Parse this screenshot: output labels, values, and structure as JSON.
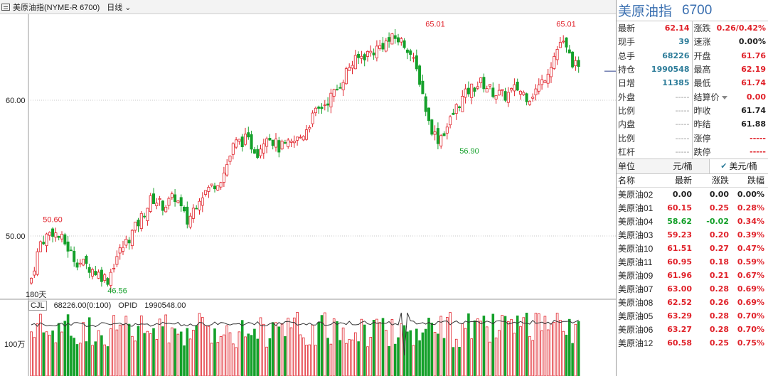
{
  "topbar": {
    "title": "美原油指(NYME-R 6700)",
    "period": "日线"
  },
  "chart": {
    "y_labels": [
      {
        "text": "60.00",
        "value": 60
      },
      {
        "text": "50.00",
        "value": 50
      }
    ],
    "annotations": [
      {
        "text": "50.60",
        "value": 50.6,
        "kind": "high"
      },
      {
        "text": "46.56",
        "value": 46.56,
        "kind": "low"
      },
      {
        "text": "65.01",
        "value": 65.01,
        "kind": "high"
      },
      {
        "text": "56.90",
        "value": 56.9,
        "kind": "low"
      },
      {
        "text": "65.01",
        "value": 65.01,
        "kind": "high"
      }
    ],
    "corner_label": "180天",
    "volume_axis_label": "100万",
    "colors": {
      "up": "#e0222a",
      "down": "#14a02a",
      "grid": "#c8c8c8"
    }
  },
  "chart_data": {
    "type": "candlestick",
    "y_ticks": [
      50,
      60
    ],
    "annotated_extremes": [
      50.6,
      46.56,
      65.01,
      56.9,
      65.01
    ],
    "volume": {
      "cjl": "68226.00(0:100)",
      "opid": "1990548.00"
    }
  },
  "vol_header": {
    "cjl": "CJL",
    "cjl_value": "68226.00(0:100)",
    "opid": "OPID",
    "opid_value": "1990548.00"
  },
  "panel": {
    "name": "美原油指",
    "code": "6700",
    "quotes": [
      {
        "l1": "最新",
        "v1": "62.14",
        "c1": "red",
        "l2": "涨跌",
        "v2": "0.26/0.42%",
        "c2": "red"
      },
      {
        "l1": "现手",
        "v1": "39",
        "c1": "teal",
        "l2": "速涨",
        "v2": "0.00%",
        "c2": "dark"
      },
      {
        "l1": "总手",
        "v1": "68226",
        "c1": "teal",
        "l2": "开盘",
        "v2": "61.76",
        "c2": "red"
      },
      {
        "l1": "持仓",
        "v1": "1990548",
        "c1": "teal",
        "l2": "最高",
        "v2": "62.19",
        "c2": "red"
      },
      {
        "l1": "日增",
        "v1": "11385",
        "c1": "teal",
        "l2": "最低",
        "v2": "61.74",
        "c2": "red"
      },
      {
        "l1": "外盘",
        "v1": "-----",
        "c1": "gray",
        "l2": "结算价",
        "v2": "0.00",
        "c2": "red"
      },
      {
        "l1": "比例",
        "v1": "-----",
        "c1": "gray",
        "l2": "昨收",
        "v2": "61.74",
        "c2": "dark"
      },
      {
        "l1": "内盘",
        "v1": "-----",
        "c1": "gray",
        "l2": "昨结",
        "v2": "61.88",
        "c2": "dark"
      },
      {
        "l1": "比例",
        "v1": "-----",
        "c1": "gray",
        "l2": "涨停",
        "v2": "-----",
        "c2": "red"
      },
      {
        "l1": "杠杆",
        "v1": "-----",
        "c1": "gray",
        "l2": "跌停",
        "v2": "-----",
        "c2": "red"
      }
    ],
    "unit": {
      "label": "单位",
      "opt1": "元/桶",
      "opt2": "美元/桶"
    },
    "list_headers": [
      "名称",
      "最新",
      "涨跌",
      "跌幅"
    ],
    "list": [
      {
        "name": "美原油02",
        "last": "0.00",
        "chg": "0.00",
        "pct": "0.00%",
        "color": "dark"
      },
      {
        "name": "美原油01",
        "last": "60.15",
        "chg": "0.25",
        "pct": "0.28%",
        "color": "red"
      },
      {
        "name": "美原油04",
        "last": "58.62",
        "chg": "-0.02",
        "pct": "0.34%",
        "color": "green",
        "pct_color": "red"
      },
      {
        "name": "美原油03",
        "last": "59.23",
        "chg": "0.20",
        "pct": "0.39%",
        "color": "red"
      },
      {
        "name": "美原油10",
        "last": "61.51",
        "chg": "0.27",
        "pct": "0.47%",
        "color": "red"
      },
      {
        "name": "美原油11",
        "last": "60.95",
        "chg": "0.18",
        "pct": "0.59%",
        "color": "red"
      },
      {
        "name": "美原油09",
        "last": "61.96",
        "chg": "0.21",
        "pct": "0.67%",
        "color": "red"
      },
      {
        "name": "美原油07",
        "last": "63.00",
        "chg": "0.28",
        "pct": "0.69%",
        "color": "red"
      },
      {
        "name": "美原油08",
        "last": "62.52",
        "chg": "0.26",
        "pct": "0.69%",
        "color": "red"
      },
      {
        "name": "美原油05",
        "last": "63.29",
        "chg": "0.28",
        "pct": "0.70%",
        "color": "red"
      },
      {
        "name": "美原油06",
        "last": "63.27",
        "chg": "0.28",
        "pct": "0.70%",
        "color": "red"
      },
      {
        "name": "美原油12",
        "last": "60.58",
        "chg": "0.25",
        "pct": "0.75%",
        "color": "red"
      }
    ]
  }
}
